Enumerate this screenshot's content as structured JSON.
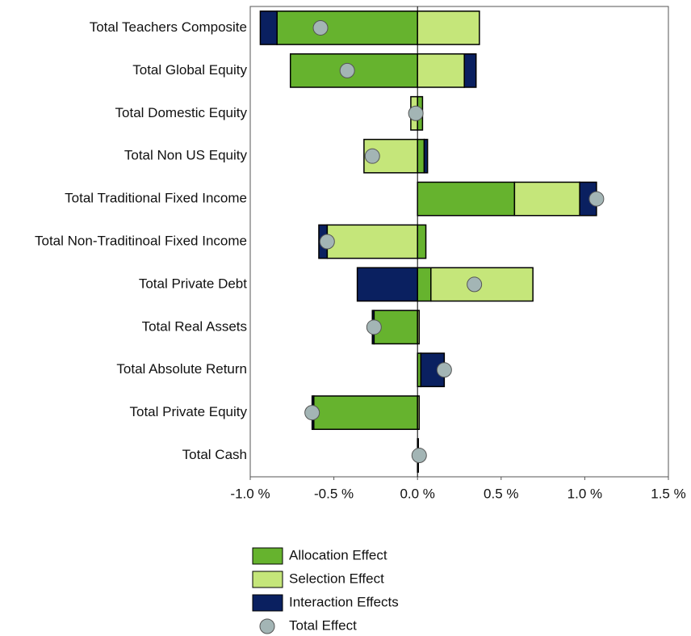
{
  "chart_data": {
    "type": "hbar_stacked",
    "categories": [
      "Total Teachers Composite",
      "Total Global Equity",
      "Total Domestic Equity",
      "Total Non US Equity",
      "Total Traditional Fixed Income",
      "Total Non-Traditinoal Fixed Income",
      "Total Private Debt",
      "Total Real Assets",
      "Total Absolute Return",
      "Total Private Equity",
      "Total Cash"
    ],
    "series": [
      {
        "name": "Allocation Effect",
        "color": "#66b32e",
        "values": [
          -0.84,
          -0.76,
          0.03,
          0.04,
          0.58,
          0.05,
          0.08,
          -0.26,
          0.02,
          -0.62,
          0
        ]
      },
      {
        "name": "Selection Effect",
        "color": "#c5e67a",
        "values": [
          0.37,
          0.28,
          -0.04,
          -0.32,
          0.39,
          -0.54,
          0.61,
          0.01,
          0,
          0.01,
          0
        ]
      },
      {
        "name": "Interaction Effects",
        "color": "#0a2060",
        "values": [
          -0.1,
          0.07,
          0,
          0.02,
          0.1,
          -0.05,
          -0.36,
          -0.01,
          0.14,
          -0.01,
          0.005
        ]
      }
    ],
    "total_series": {
      "name": "Total Effect",
      "color": "#a3b5b5",
      "values": [
        -0.58,
        -0.42,
        -0.01,
        -0.27,
        1.07,
        -0.54,
        0.34,
        -0.26,
        0.16,
        -0.63,
        0.01
      ]
    },
    "xlim": [
      -1.0,
      1.5
    ],
    "xticks": [
      {
        "value": -1.0,
        "label": "-1.0 %"
      },
      {
        "value": -0.5,
        "label": "-0.5 %"
      },
      {
        "value": 0,
        "label": "0.0 %"
      },
      {
        "value": 0.5,
        "label": "0.5 %"
      },
      {
        "value": 1.0,
        "label": "1.0 %"
      },
      {
        "value": 1.5,
        "label": "1.5 %"
      }
    ],
    "grid": false,
    "legend": "bottom"
  }
}
